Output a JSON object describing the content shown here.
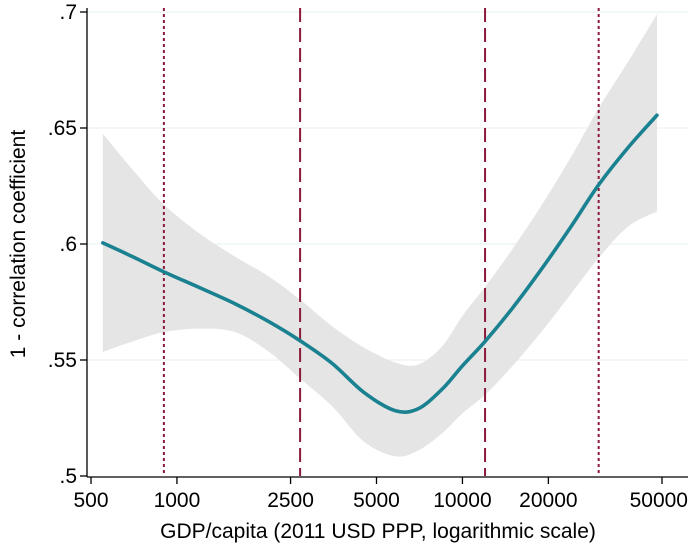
{
  "chart_data": {
    "type": "line",
    "title": "",
    "xlabel": "GDP/capita (2011 USD PPP, logarithmic scale)",
    "ylabel": "1 - correlation coefficient",
    "x_scale": "log",
    "xlim": [
      500,
      50000
    ],
    "ylim": [
      0.5,
      0.7
    ],
    "grid": "horizontal",
    "legend": "none",
    "x_ticks": [
      {
        "value": 500,
        "label": "500"
      },
      {
        "value": 1000,
        "label": "1000"
      },
      {
        "value": 2500,
        "label": "2500"
      },
      {
        "value": 5000,
        "label": "5000"
      },
      {
        "value": 10000,
        "label": "10000"
      },
      {
        "value": 20000,
        "label": "20000"
      },
      {
        "value": 50000,
        "label": "50000"
      }
    ],
    "y_ticks": [
      {
        "value": 0.5,
        "label": ".5"
      },
      {
        "value": 0.55,
        "label": ".55"
      },
      {
        "value": 0.6,
        "label": ".6"
      },
      {
        "value": 0.65,
        "label": ".65"
      },
      {
        "value": 0.7,
        "label": ".7"
      }
    ],
    "series": [
      {
        "style": "fitted-line-with-confidence-band",
        "color": "#1a8190",
        "band_color": "#e5e5e5",
        "x": [
          550,
          700,
          900,
          1200,
          1600,
          2100,
          2700,
          3500,
          4500,
          5800,
          7000,
          8500,
          10000,
          12000,
          15000,
          19000,
          24000,
          30000,
          38000,
          48000
        ],
        "y": [
          0.6005,
          0.5945,
          0.588,
          0.5812,
          0.5742,
          0.5665,
          0.5583,
          0.5485,
          0.5362,
          0.5282,
          0.529,
          0.5375,
          0.5475,
          0.558,
          0.5725,
          0.5895,
          0.6075,
          0.6255,
          0.6415,
          0.6555
        ],
        "lower": [
          0.5535,
          0.558,
          0.562,
          0.5635,
          0.562,
          0.5535,
          0.542,
          0.53,
          0.515,
          0.5085,
          0.511,
          0.5185,
          0.527,
          0.535,
          0.5475,
          0.5625,
          0.5785,
          0.594,
          0.6075,
          0.614
        ],
        "upper": [
          0.6475,
          0.632,
          0.617,
          0.6045,
          0.5945,
          0.586,
          0.576,
          0.5645,
          0.5555,
          0.549,
          0.548,
          0.556,
          0.569,
          0.5815,
          0.598,
          0.617,
          0.6375,
          0.6585,
          0.6785,
          0.699
        ]
      }
    ],
    "reference_lines": [
      {
        "x": 900,
        "style": "dotted",
        "color": "#8b1a3a"
      },
      {
        "x": 2700,
        "style": "dashed",
        "color": "#8b1a3a"
      },
      {
        "x": 12000,
        "style": "dashed",
        "color": "#8b1a3a"
      },
      {
        "x": 30000,
        "style": "dotted",
        "color": "#8b1a3a"
      }
    ]
  }
}
